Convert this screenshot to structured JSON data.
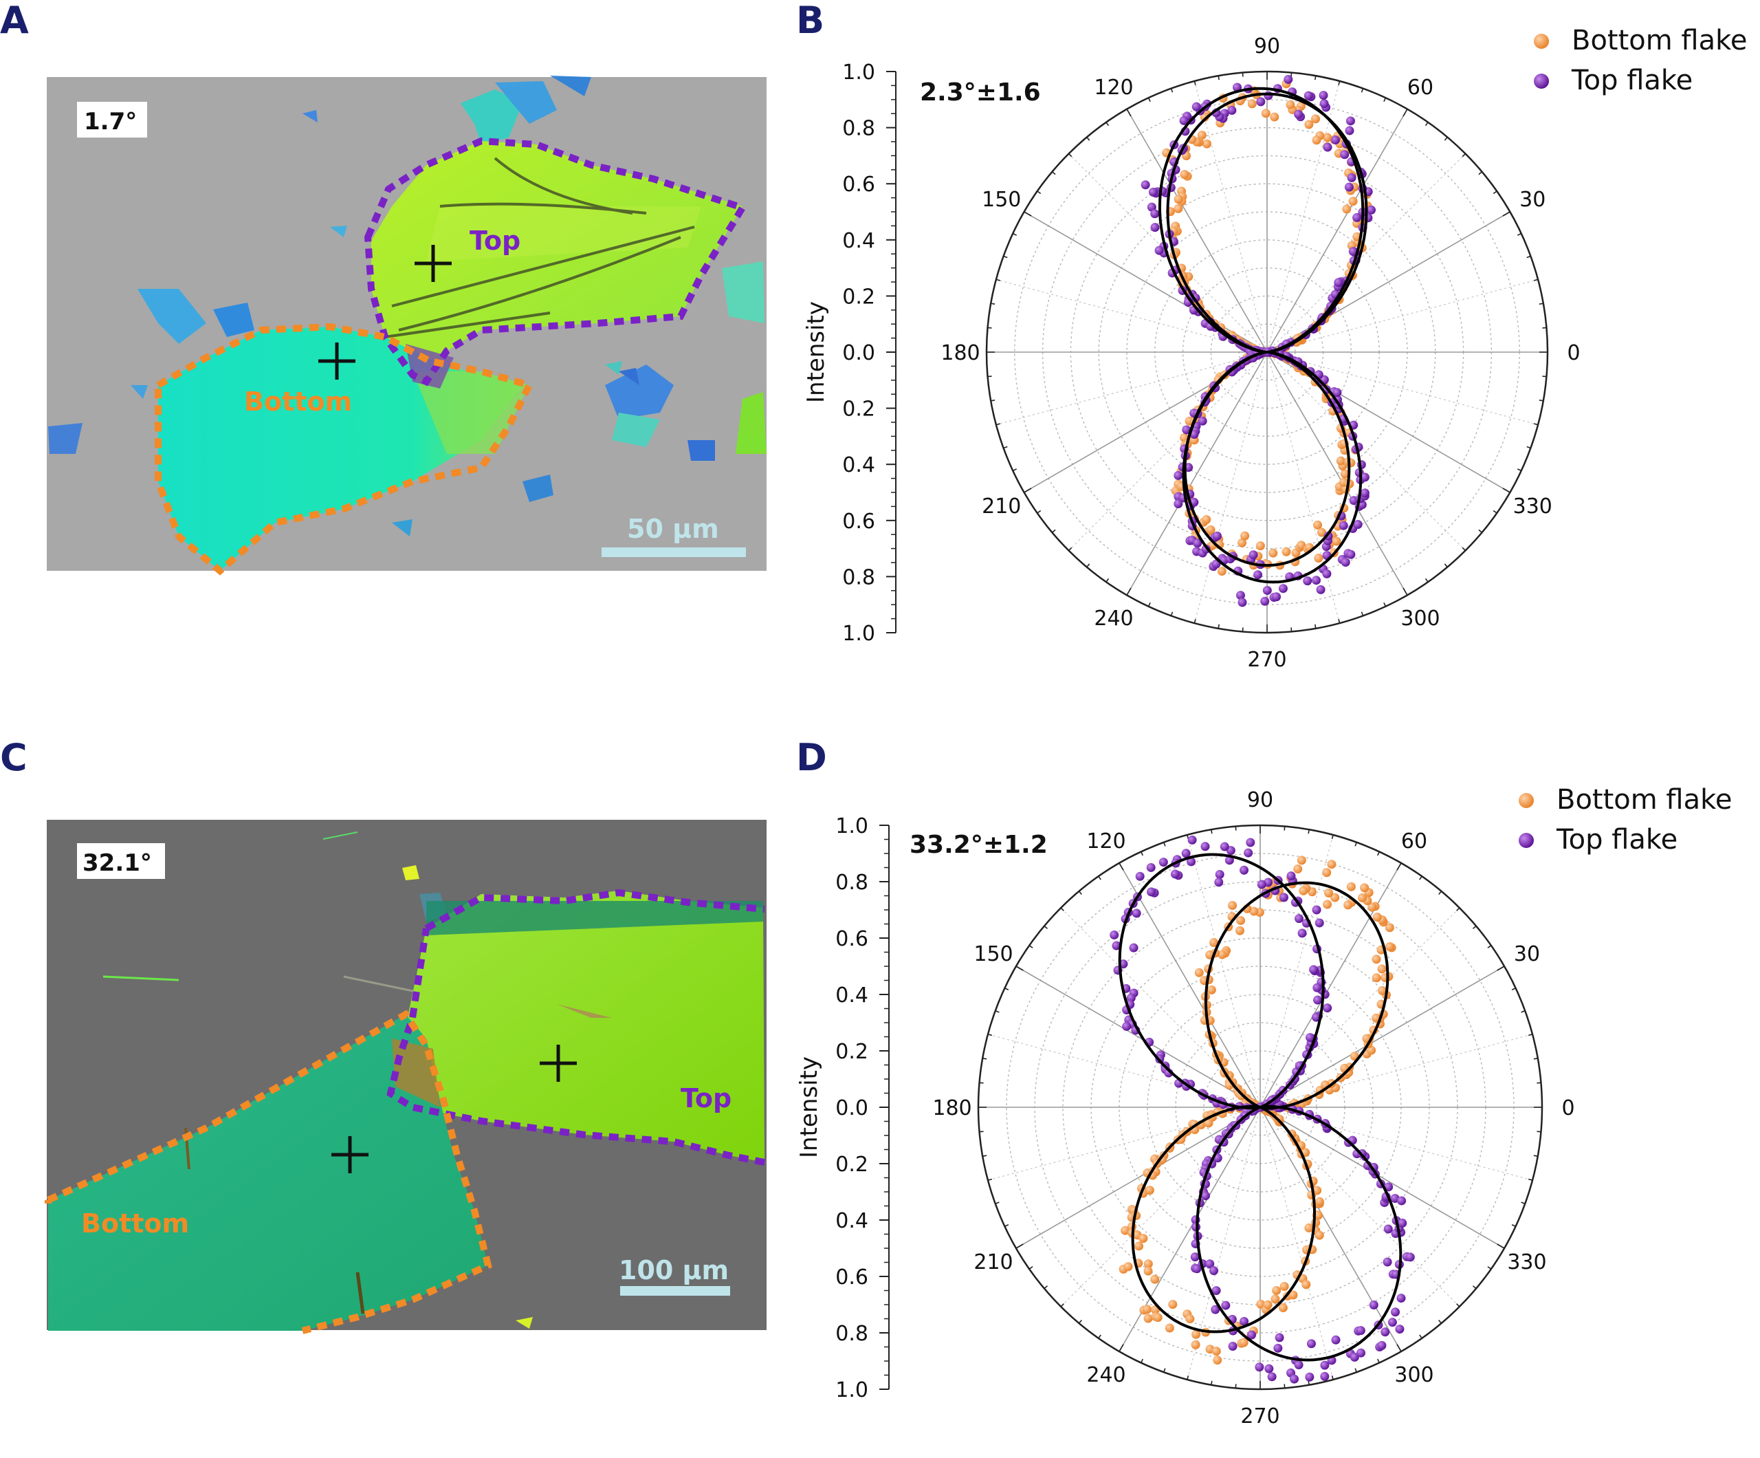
{
  "colors": {
    "bottom": "#f39a4a",
    "top": "#7a22c6",
    "panel_label": "#1a1f6b",
    "fit": "#000000"
  },
  "panelA": {
    "label": "A",
    "twist": "1.7°",
    "top_label": "Top",
    "bottom_label": "Bottom",
    "scale_bar": "50 μm"
  },
  "panelC": {
    "label": "C",
    "twist": "32.1°",
    "top_label": "Top",
    "bottom_label": "Bottom",
    "scale_bar": "100 μm"
  },
  "chart_data": [
    {
      "panel": "B",
      "type": "polar-scatter",
      "ylabel": "Intensity",
      "radial_range": [
        0,
        1.0
      ],
      "radial_ticks": [
        "1.0",
        "0.8",
        "0.6",
        "0.4",
        "0.2",
        "0.0",
        "0.2",
        "0.4",
        "0.6",
        "0.8",
        "1.0"
      ],
      "angle_ticks": [
        "0",
        "30",
        "60",
        "90",
        "120",
        "150",
        "180",
        "210",
        "240",
        "270",
        "300",
        "330"
      ],
      "annotation": "2.3°±1.6",
      "legend": [
        "Bottom flake",
        "Top flake"
      ],
      "series": [
        {
          "name": "Bottom flake",
          "peak_angle_deg": 90,
          "amplitude": 0.88,
          "fit_amplitude": 0.92,
          "lower_amplitude": 0.76
        },
        {
          "name": "Top flake",
          "peak_angle_deg": 92.3,
          "amplitude": 0.92,
          "fit_amplitude": 0.94,
          "lower_amplitude": 0.82
        }
      ]
    },
    {
      "panel": "D",
      "type": "polar-scatter",
      "ylabel": "Intensity",
      "radial_range": [
        0,
        1.0
      ],
      "radial_ticks": [
        "1.0",
        "0.8",
        "0.6",
        "0.4",
        "0.2",
        "0.0",
        "0.2",
        "0.4",
        "0.6",
        "0.8",
        "1.0"
      ],
      "angle_ticks": [
        "0",
        "30",
        "60",
        "90",
        "120",
        "150",
        "180",
        "210",
        "240",
        "270",
        "300",
        "330"
      ],
      "annotation": "33.2°±1.2",
      "legend": [
        "Bottom flake",
        "Top flake"
      ],
      "series": [
        {
          "name": "Bottom flake",
          "peak_angle_deg": 73,
          "amplitude": 0.82,
          "fit_amplitude": 0.82,
          "lower_amplitude": 0.82
        },
        {
          "name": "Top flake",
          "peak_angle_deg": 106,
          "amplitude": 0.92,
          "fit_amplitude": 0.92,
          "lower_amplitude": 0.92
        }
      ]
    }
  ]
}
